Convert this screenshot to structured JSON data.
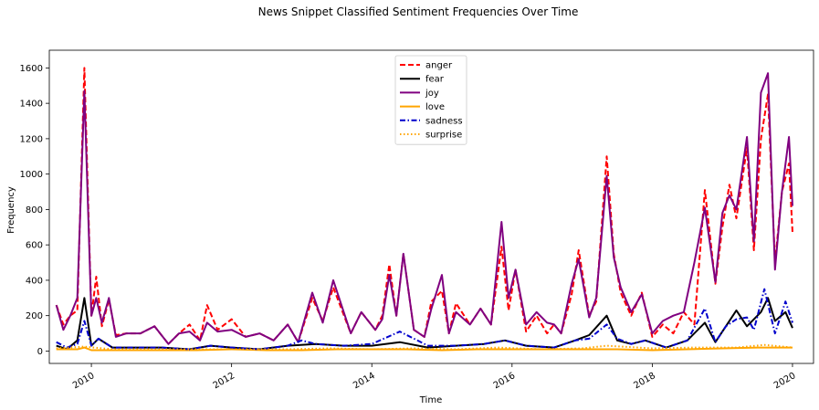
{
  "chart_data": {
    "type": "line",
    "title": "News Snippet Classified Sentiment Frequencies Over Time",
    "xlabel": "Time",
    "ylabel": "Frequency",
    "xlim": [
      2009.4,
      2020.3
    ],
    "ylim": [
      -70,
      1700
    ],
    "xticks": [
      2010,
      2012,
      2014,
      2016,
      2018,
      2020
    ],
    "xtick_labels": [
      "2010",
      "2012",
      "2014",
      "2016",
      "2018",
      "2020"
    ],
    "yticks": [
      0,
      200,
      400,
      600,
      800,
      1000,
      1200,
      1400,
      1600
    ],
    "ytick_labels": [
      "0",
      "200",
      "400",
      "600",
      "800",
      "1000",
      "1200",
      "1400",
      "1600"
    ],
    "legend_position": "top-center",
    "grid": false,
    "series": [
      {
        "name": "anger",
        "color": "#ff0000",
        "dash": "dashed",
        "points": [
          [
            2009.5,
            260
          ],
          [
            2009.6,
            150
          ],
          [
            2009.7,
            200
          ],
          [
            2009.8,
            230
          ],
          [
            2009.9,
            1600
          ],
          [
            2010.0,
            200
          ],
          [
            2010.07,
            420
          ],
          [
            2010.15,
            140
          ],
          [
            2010.25,
            290
          ],
          [
            2010.35,
            90
          ],
          [
            2010.5,
            100
          ],
          [
            2010.7,
            100
          ],
          [
            2010.9,
            140
          ],
          [
            2011.1,
            40
          ],
          [
            2011.25,
            100
          ],
          [
            2011.4,
            150
          ],
          [
            2011.55,
            60
          ],
          [
            2011.65,
            260
          ],
          [
            2011.8,
            120
          ],
          [
            2012.0,
            180
          ],
          [
            2012.2,
            80
          ],
          [
            2012.4,
            100
          ],
          [
            2012.6,
            60
          ],
          [
            2012.8,
            150
          ],
          [
            2012.95,
            50
          ],
          [
            2013.15,
            300
          ],
          [
            2013.3,
            170
          ],
          [
            2013.45,
            360
          ],
          [
            2013.7,
            100
          ],
          [
            2013.85,
            220
          ],
          [
            2014.05,
            120
          ],
          [
            2014.15,
            200
          ],
          [
            2014.25,
            490
          ],
          [
            2014.35,
            200
          ],
          [
            2014.45,
            550
          ],
          [
            2014.6,
            120
          ],
          [
            2014.75,
            80
          ],
          [
            2014.85,
            280
          ],
          [
            2015.0,
            340
          ],
          [
            2015.1,
            100
          ],
          [
            2015.2,
            270
          ],
          [
            2015.4,
            150
          ],
          [
            2015.55,
            240
          ],
          [
            2015.7,
            150
          ],
          [
            2015.85,
            590
          ],
          [
            2015.95,
            230
          ],
          [
            2016.05,
            460
          ],
          [
            2016.2,
            110
          ],
          [
            2016.35,
            200
          ],
          [
            2016.5,
            100
          ],
          [
            2016.6,
            150
          ],
          [
            2016.7,
            100
          ],
          [
            2016.85,
            320
          ],
          [
            2016.95,
            570
          ],
          [
            2017.1,
            200
          ],
          [
            2017.2,
            280
          ],
          [
            2017.35,
            1100
          ],
          [
            2017.45,
            550
          ],
          [
            2017.55,
            330
          ],
          [
            2017.7,
            200
          ],
          [
            2017.85,
            330
          ],
          [
            2018.0,
            80
          ],
          [
            2018.15,
            150
          ],
          [
            2018.3,
            100
          ],
          [
            2018.45,
            220
          ],
          [
            2018.6,
            150
          ],
          [
            2018.75,
            910
          ],
          [
            2018.9,
            380
          ],
          [
            2019.0,
            700
          ],
          [
            2019.1,
            940
          ],
          [
            2019.2,
            750
          ],
          [
            2019.35,
            1150
          ],
          [
            2019.45,
            570
          ],
          [
            2019.55,
            1200
          ],
          [
            2019.65,
            1450
          ],
          [
            2019.75,
            500
          ],
          [
            2019.85,
            900
          ],
          [
            2019.95,
            1060
          ],
          [
            2020.0,
            670
          ]
        ]
      },
      {
        "name": "fear",
        "color": "#000000",
        "dash": "solid",
        "points": [
          [
            2009.5,
            30
          ],
          [
            2009.65,
            10
          ],
          [
            2009.8,
            60
          ],
          [
            2009.9,
            300
          ],
          [
            2010.0,
            30
          ],
          [
            2010.1,
            70
          ],
          [
            2010.3,
            20
          ],
          [
            2010.6,
            20
          ],
          [
            2011.0,
            20
          ],
          [
            2011.4,
            10
          ],
          [
            2011.7,
            30
          ],
          [
            2012.0,
            20
          ],
          [
            2012.4,
            10
          ],
          [
            2012.8,
            30
          ],
          [
            2013.2,
            40
          ],
          [
            2013.6,
            30
          ],
          [
            2014.0,
            30
          ],
          [
            2014.4,
            50
          ],
          [
            2014.8,
            20
          ],
          [
            2015.2,
            30
          ],
          [
            2015.6,
            40
          ],
          [
            2015.9,
            60
          ],
          [
            2016.2,
            30
          ],
          [
            2016.6,
            20
          ],
          [
            2016.9,
            60
          ],
          [
            2017.1,
            90
          ],
          [
            2017.35,
            200
          ],
          [
            2017.5,
            60
          ],
          [
            2017.7,
            40
          ],
          [
            2017.9,
            60
          ],
          [
            2018.2,
            20
          ],
          [
            2018.5,
            60
          ],
          [
            2018.75,
            160
          ],
          [
            2018.9,
            50
          ],
          [
            2019.05,
            140
          ],
          [
            2019.2,
            230
          ],
          [
            2019.35,
            140
          ],
          [
            2019.55,
            220
          ],
          [
            2019.65,
            300
          ],
          [
            2019.75,
            170
          ],
          [
            2019.9,
            220
          ],
          [
            2020.0,
            130
          ]
        ]
      },
      {
        "name": "joy",
        "color": "#800080",
        "dash": "solid",
        "points": [
          [
            2009.5,
            260
          ],
          [
            2009.6,
            120
          ],
          [
            2009.7,
            200
          ],
          [
            2009.8,
            300
          ],
          [
            2009.9,
            1470
          ],
          [
            2010.0,
            200
          ],
          [
            2010.07,
            300
          ],
          [
            2010.15,
            160
          ],
          [
            2010.25,
            300
          ],
          [
            2010.35,
            80
          ],
          [
            2010.5,
            100
          ],
          [
            2010.7,
            100
          ],
          [
            2010.9,
            140
          ],
          [
            2011.1,
            40
          ],
          [
            2011.25,
            100
          ],
          [
            2011.4,
            110
          ],
          [
            2011.55,
            60
          ],
          [
            2011.65,
            160
          ],
          [
            2011.8,
            110
          ],
          [
            2012.0,
            120
          ],
          [
            2012.2,
            80
          ],
          [
            2012.4,
            100
          ],
          [
            2012.6,
            60
          ],
          [
            2012.8,
            150
          ],
          [
            2012.95,
            50
          ],
          [
            2013.15,
            330
          ],
          [
            2013.3,
            160
          ],
          [
            2013.45,
            400
          ],
          [
            2013.7,
            100
          ],
          [
            2013.85,
            220
          ],
          [
            2014.05,
            120
          ],
          [
            2014.15,
            180
          ],
          [
            2014.25,
            430
          ],
          [
            2014.35,
            200
          ],
          [
            2014.45,
            550
          ],
          [
            2014.6,
            120
          ],
          [
            2014.75,
            80
          ],
          [
            2014.85,
            240
          ],
          [
            2015.0,
            430
          ],
          [
            2015.1,
            100
          ],
          [
            2015.2,
            220
          ],
          [
            2015.4,
            150
          ],
          [
            2015.55,
            240
          ],
          [
            2015.7,
            150
          ],
          [
            2015.85,
            730
          ],
          [
            2015.95,
            300
          ],
          [
            2016.05,
            460
          ],
          [
            2016.2,
            150
          ],
          [
            2016.35,
            220
          ],
          [
            2016.5,
            160
          ],
          [
            2016.6,
            150
          ],
          [
            2016.7,
            100
          ],
          [
            2016.85,
            380
          ],
          [
            2016.95,
            520
          ],
          [
            2017.1,
            190
          ],
          [
            2017.2,
            300
          ],
          [
            2017.35,
            990
          ],
          [
            2017.45,
            530
          ],
          [
            2017.55,
            360
          ],
          [
            2017.7,
            220
          ],
          [
            2017.85,
            320
          ],
          [
            2018.0,
            100
          ],
          [
            2018.15,
            170
          ],
          [
            2018.3,
            200
          ],
          [
            2018.45,
            220
          ],
          [
            2018.6,
            500
          ],
          [
            2018.75,
            810
          ],
          [
            2018.9,
            390
          ],
          [
            2019.0,
            780
          ],
          [
            2019.1,
            880
          ],
          [
            2019.2,
            800
          ],
          [
            2019.35,
            1210
          ],
          [
            2019.45,
            620
          ],
          [
            2019.55,
            1460
          ],
          [
            2019.65,
            1570
          ],
          [
            2019.75,
            460
          ],
          [
            2019.85,
            900
          ],
          [
            2019.95,
            1210
          ],
          [
            2020.0,
            820
          ]
        ]
      },
      {
        "name": "love",
        "color": "#ffa500",
        "dash": "solid",
        "points": [
          [
            2009.5,
            10
          ],
          [
            2009.8,
            10
          ],
          [
            2009.9,
            20
          ],
          [
            2010.0,
            5
          ],
          [
            2010.5,
            5
          ],
          [
            2011.0,
            5
          ],
          [
            2011.5,
            5
          ],
          [
            2012.0,
            10
          ],
          [
            2012.5,
            5
          ],
          [
            2013.0,
            5
          ],
          [
            2013.5,
            10
          ],
          [
            2014.0,
            10
          ],
          [
            2014.5,
            10
          ],
          [
            2015.0,
            5
          ],
          [
            2015.5,
            10
          ],
          [
            2016.0,
            10
          ],
          [
            2016.5,
            10
          ],
          [
            2017.0,
            10
          ],
          [
            2017.5,
            10
          ],
          [
            2018.0,
            5
          ],
          [
            2018.5,
            10
          ],
          [
            2019.0,
            15
          ],
          [
            2019.5,
            20
          ],
          [
            2020.0,
            20
          ]
        ]
      },
      {
        "name": "sadness",
        "color": "#0000cc",
        "dash": "dashdot",
        "points": [
          [
            2009.5,
            50
          ],
          [
            2009.65,
            20
          ],
          [
            2009.8,
            40
          ],
          [
            2009.9,
            170
          ],
          [
            2010.0,
            30
          ],
          [
            2010.1,
            70
          ],
          [
            2010.3,
            20
          ],
          [
            2010.6,
            20
          ],
          [
            2011.0,
            20
          ],
          [
            2011.4,
            10
          ],
          [
            2011.7,
            30
          ],
          [
            2012.0,
            20
          ],
          [
            2012.4,
            10
          ],
          [
            2012.8,
            30
          ],
          [
            2013.0,
            60
          ],
          [
            2013.2,
            40
          ],
          [
            2013.6,
            30
          ],
          [
            2014.0,
            40
          ],
          [
            2014.4,
            110
          ],
          [
            2014.8,
            30
          ],
          [
            2015.2,
            30
          ],
          [
            2015.6,
            40
          ],
          [
            2015.9,
            60
          ],
          [
            2016.2,
            30
          ],
          [
            2016.6,
            20
          ],
          [
            2016.9,
            60
          ],
          [
            2017.1,
            70
          ],
          [
            2017.35,
            150
          ],
          [
            2017.5,
            70
          ],
          [
            2017.7,
            40
          ],
          [
            2017.9,
            60
          ],
          [
            2018.2,
            20
          ],
          [
            2018.5,
            60
          ],
          [
            2018.75,
            240
          ],
          [
            2018.9,
            50
          ],
          [
            2019.05,
            140
          ],
          [
            2019.2,
            180
          ],
          [
            2019.35,
            190
          ],
          [
            2019.45,
            120
          ],
          [
            2019.6,
            350
          ],
          [
            2019.75,
            100
          ],
          [
            2019.9,
            280
          ],
          [
            2020.0,
            160
          ]
        ]
      },
      {
        "name": "surprise",
        "color": "#ffa500",
        "dash": "dotted",
        "points": [
          [
            2009.5,
            15
          ],
          [
            2009.9,
            25
          ],
          [
            2010.3,
            10
          ],
          [
            2011.0,
            10
          ],
          [
            2011.6,
            10
          ],
          [
            2012.2,
            10
          ],
          [
            2012.8,
            10
          ],
          [
            2013.4,
            15
          ],
          [
            2014.0,
            10
          ],
          [
            2014.6,
            15
          ],
          [
            2015.2,
            10
          ],
          [
            2015.8,
            20
          ],
          [
            2016.4,
            10
          ],
          [
            2017.0,
            15
          ],
          [
            2017.35,
            30
          ],
          [
            2018.0,
            15
          ],
          [
            2018.6,
            20
          ],
          [
            2019.2,
            20
          ],
          [
            2019.6,
            35
          ],
          [
            2020.0,
            20
          ]
        ]
      }
    ]
  }
}
